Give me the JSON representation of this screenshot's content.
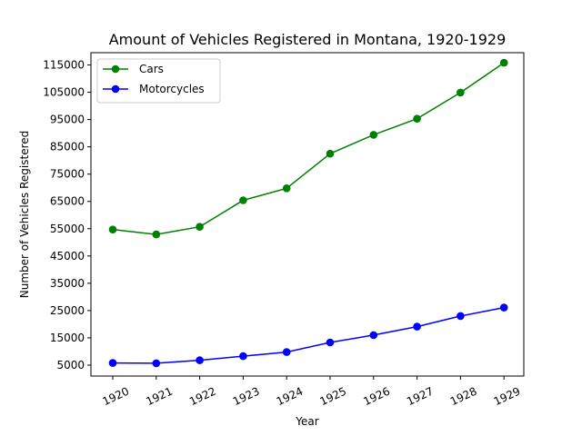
{
  "chart_data": {
    "type": "line",
    "title": "Amount of Vehicles Registered in Montana, 1920-1929",
    "xlabel": "Year",
    "ylabel": "Number of Vehicles Registered",
    "categories": [
      "1920",
      "1921",
      "1922",
      "1923",
      "1924",
      "1925",
      "1926",
      "1927",
      "1928",
      "1929"
    ],
    "yticks": [
      "5000",
      "15000",
      "25000",
      "35000",
      "45000",
      "55000",
      "65000",
      "75000",
      "85000",
      "95000",
      "105000",
      "115000"
    ],
    "ylim": [
      1000,
      119500
    ],
    "grid": false,
    "legend_position": "top-left",
    "series": [
      {
        "name": "Cars",
        "color": "#008000",
        "marker": "circle",
        "values": [
          54700,
          52900,
          55700,
          65400,
          69800,
          82500,
          89400,
          95300,
          104900,
          115800
        ]
      },
      {
        "name": "Motorcycles",
        "color": "#0000ff",
        "marker": "circle",
        "values": [
          5800,
          5700,
          6800,
          8300,
          9800,
          13300,
          16000,
          19100,
          23000,
          26100
        ]
      }
    ]
  }
}
